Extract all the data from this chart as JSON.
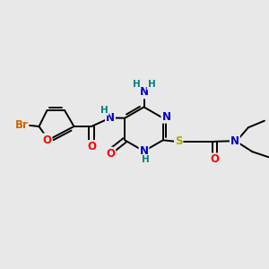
{
  "background_color": "#e8e8e8",
  "atom_colors": {
    "C": "#000000",
    "N": "#0000cc",
    "O": "#ff0000",
    "S": "#aaaa00",
    "Br": "#cc6600",
    "H": "#008080"
  },
  "bond_color": "#000000",
  "fig_size": [
    3.0,
    3.0
  ],
  "dpi": 100
}
